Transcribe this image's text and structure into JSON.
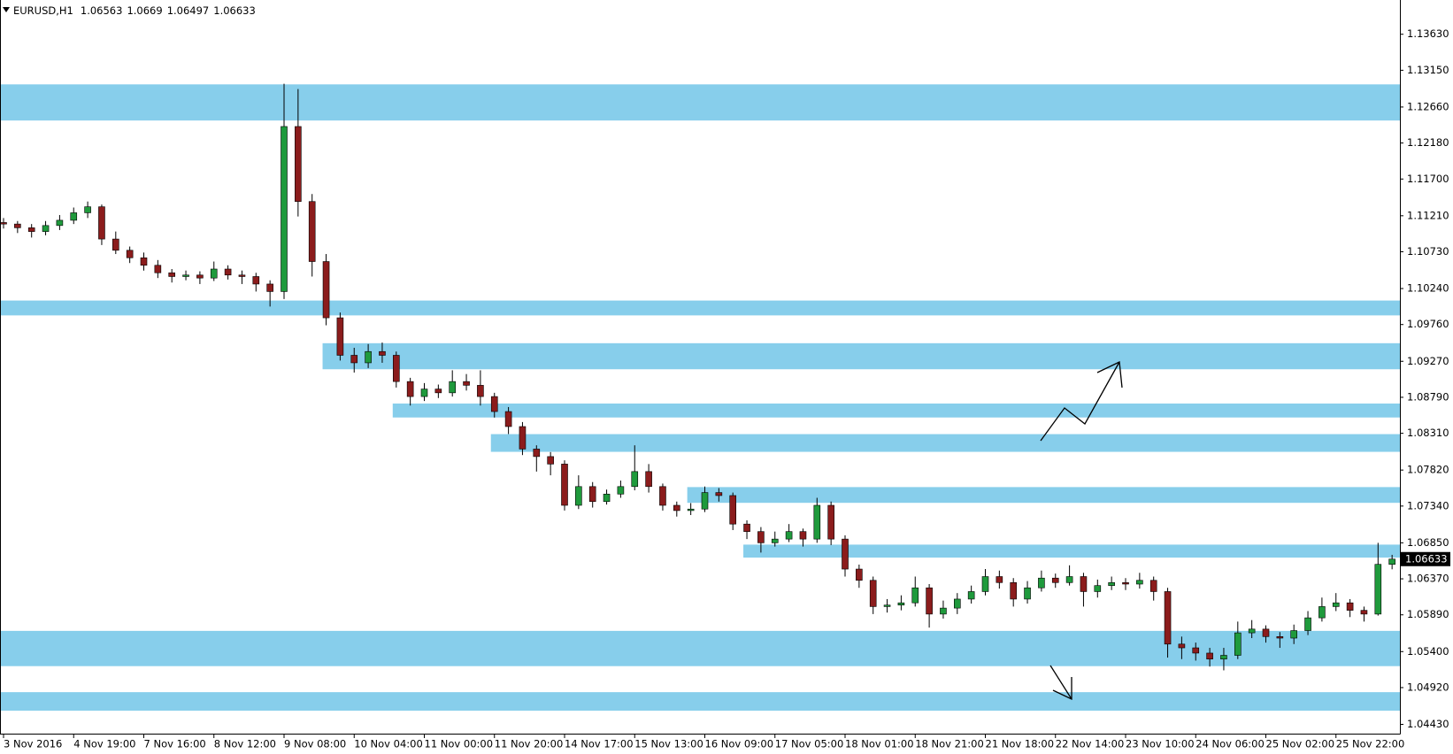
{
  "chart_data": {
    "type": "candlestick",
    "title": "EURUSD,H1",
    "open": [
      1.1112,
      1.111,
      1.1105,
      1.11,
      1.1108,
      1.1115,
      1.1125,
      1.1133,
      1.109,
      1.1075,
      1.1065,
      1.1055,
      1.1045,
      1.104,
      1.1042,
      1.1038,
      1.105,
      1.1042,
      1.104,
      1.103,
      1.102,
      1.124,
      1.114,
      1.106,
      1.0985,
      1.0935,
      1.0925,
      1.094,
      1.0935,
      1.09,
      1.088,
      1.089,
      1.0885,
      1.09,
      1.0895,
      1.088,
      1.086,
      1.084,
      1.081,
      1.08,
      1.079,
      1.0735,
      1.076,
      1.074,
      1.075,
      1.076,
      1.078,
      1.076,
      1.0735,
      1.0728,
      1.073,
      1.0752,
      1.0748,
      1.071,
      1.07,
      1.0685,
      1.069,
      1.07,
      1.069,
      1.0735,
      1.069,
      1.065,
      1.0635,
      1.06,
      1.0602,
      1.0605,
      1.0625,
      1.059,
      1.0598,
      1.061,
      1.062,
      1.064,
      1.0632,
      1.061,
      1.0625,
      1.0638,
      1.0632,
      1.064,
      1.062,
      1.0628,
      1.0632,
      1.063,
      1.0635,
      1.062,
      1.055,
      1.0545,
      1.0538,
      1.053,
      1.0535,
      1.0565,
      1.057,
      1.056,
      1.0558,
      1.0568,
      1.0585,
      1.06,
      1.0605,
      1.0595,
      1.059,
      1.06563
    ],
    "high": [
      1.1118,
      1.1114,
      1.111,
      1.1114,
      1.1122,
      1.1132,
      1.114,
      1.1136,
      1.11,
      1.108,
      1.1072,
      1.1062,
      1.105,
      1.1048,
      1.1047,
      1.106,
      1.1055,
      1.1048,
      1.1045,
      1.1035,
      1.1297,
      1.129,
      1.115,
      1.107,
      1.0992,
      1.0945,
      1.095,
      1.0952,
      1.094,
      1.0905,
      1.0898,
      1.0896,
      1.0915,
      1.091,
      1.0915,
      1.0885,
      1.0866,
      1.0846,
      1.0815,
      1.0806,
      1.0795,
      1.0775,
      1.0766,
      1.0756,
      1.0768,
      1.0815,
      1.079,
      1.0764,
      1.074,
      1.0738,
      1.076,
      1.0758,
      1.0752,
      1.0715,
      1.0706,
      1.07,
      1.071,
      1.0704,
      1.0745,
      1.074,
      1.0695,
      1.0656,
      1.064,
      1.061,
      1.0615,
      1.064,
      1.063,
      1.0608,
      1.0618,
      1.0628,
      1.065,
      1.0648,
      1.0638,
      1.0634,
      1.0648,
      1.0644,
      1.0655,
      1.0645,
      1.0636,
      1.064,
      1.0638,
      1.0645,
      1.064,
      1.0625,
      1.056,
      1.0552,
      1.0545,
      1.0545,
      1.058,
      1.0582,
      1.0575,
      1.0566,
      1.0576,
      1.0594,
      1.0612,
      1.0618,
      1.061,
      1.06,
      1.0685,
      1.0669
    ],
    "low": [
      1.1104,
      1.1098,
      1.1092,
      1.1095,
      1.1102,
      1.111,
      1.1118,
      1.1082,
      1.107,
      1.1058,
      1.1048,
      1.1038,
      1.1032,
      1.1035,
      1.103,
      1.1034,
      1.1036,
      1.103,
      1.102,
      1.1,
      1.101,
      1.112,
      1.104,
      1.0975,
      1.0928,
      1.0912,
      1.0918,
      1.0925,
      1.0892,
      1.0868,
      1.0874,
      1.0878,
      1.088,
      1.0888,
      1.0868,
      1.0852,
      1.083,
      1.0802,
      1.078,
      1.0775,
      1.0728,
      1.073,
      1.0732,
      1.0736,
      1.0745,
      1.0755,
      1.0752,
      1.0728,
      1.072,
      1.0722,
      1.0726,
      1.074,
      1.0702,
      1.069,
      1.0672,
      1.068,
      1.0686,
      1.068,
      1.0685,
      1.0682,
      1.064,
      1.0625,
      1.059,
      1.0592,
      1.0595,
      1.06,
      1.0572,
      1.0584,
      1.059,
      1.0604,
      1.0615,
      1.0624,
      1.06,
      1.0604,
      1.062,
      1.0625,
      1.0628,
      1.06,
      1.0612,
      1.0622,
      1.0622,
      1.0624,
      1.0608,
      1.0532,
      1.053,
      1.0528,
      1.052,
      1.0515,
      1.053,
      1.0558,
      1.0552,
      1.0545,
      1.055,
      1.0562,
      1.058,
      1.0594,
      1.0586,
      1.058,
      1.0588,
      1.06497
    ],
    "close": [
      1.111,
      1.1105,
      1.11,
      1.1108,
      1.1115,
      1.1125,
      1.1133,
      1.109,
      1.1075,
      1.1065,
      1.1055,
      1.1045,
      1.104,
      1.1042,
      1.1038,
      1.105,
      1.1042,
      1.104,
      1.103,
      1.102,
      1.124,
      1.114,
      1.106,
      1.0985,
      1.0935,
      1.0925,
      1.094,
      1.0935,
      1.09,
      1.088,
      1.089,
      1.0885,
      1.09,
      1.0895,
      1.088,
      1.086,
      1.084,
      1.081,
      1.08,
      1.079,
      1.0735,
      1.076,
      1.074,
      1.075,
      1.076,
      1.078,
      1.076,
      1.0735,
      1.0728,
      1.073,
      1.0752,
      1.0748,
      1.071,
      1.07,
      1.0685,
      1.069,
      1.07,
      1.069,
      1.0735,
      1.069,
      1.065,
      1.0635,
      1.06,
      1.0602,
      1.0605,
      1.0625,
      1.059,
      1.0598,
      1.061,
      1.062,
      1.064,
      1.0632,
      1.061,
      1.0625,
      1.0638,
      1.0632,
      1.064,
      1.062,
      1.0628,
      1.0632,
      1.063,
      1.0635,
      1.062,
      1.055,
      1.0545,
      1.0538,
      1.053,
      1.0535,
      1.0565,
      1.057,
      1.056,
      1.0558,
      1.0568,
      1.0585,
      1.06,
      1.0605,
      1.0595,
      1.059,
      1.06563,
      1.06633
    ],
    "up_color": "#1f9a3c",
    "down_color": "#8b1c1c",
    "zone_color": "#87ceeb",
    "zones": [
      {
        "from": 1.12962,
        "to": 1.1248,
        "start": 0
      },
      {
        "from": 1.1008,
        "to": 1.09882,
        "start": 0
      },
      {
        "from": 1.09511,
        "to": 1.09164,
        "start": 23
      },
      {
        "from": 1.08707,
        "to": 1.08521,
        "start": 28
      },
      {
        "from": 1.08299,
        "to": 1.08063,
        "start": 35
      },
      {
        "from": 1.07593,
        "to": 1.07383,
        "start": 49
      },
      {
        "from": 1.06826,
        "to": 1.06653,
        "start": 53
      },
      {
        "from": 1.05676,
        "to": 1.05206,
        "start": 0
      },
      {
        "from": 1.04859,
        "to": 1.04612,
        "start": 0
      }
    ],
    "ylim": [
      1.04306,
      1.14063
    ],
    "yticks": [
      {
        "value": 1.1363,
        "label": "1.13630"
      },
      {
        "value": 1.1315,
        "label": "1.13150"
      },
      {
        "value": 1.1266,
        "label": "1.12660"
      },
      {
        "value": 1.1218,
        "label": "1.12180"
      },
      {
        "value": 1.117,
        "label": "1.11700"
      },
      {
        "value": 1.1121,
        "label": "1.11210"
      },
      {
        "value": 1.1073,
        "label": "1.10730"
      },
      {
        "value": 1.1024,
        "label": "1.10240"
      },
      {
        "value": 1.0976,
        "label": "1.09760"
      },
      {
        "value": 1.0927,
        "label": "1.09270"
      },
      {
        "value": 1.0879,
        "label": "1.08790"
      },
      {
        "value": 1.0831,
        "label": "1.08310"
      },
      {
        "value": 1.0782,
        "label": "1.07820"
      },
      {
        "value": 1.0734,
        "label": "1.07340"
      },
      {
        "value": 1.0685,
        "label": "1.06850"
      },
      {
        "value": 1.0637,
        "label": "1.06370"
      },
      {
        "value": 1.0589,
        "label": "1.05890"
      },
      {
        "value": 1.054,
        "label": "1.05400"
      },
      {
        "value": 1.0492,
        "label": "1.04920"
      },
      {
        "value": 1.0443,
        "label": "1.04430"
      }
    ],
    "xticks": [
      {
        "value": 0,
        "label": "3 Nov 2016"
      },
      {
        "value": 5,
        "label": "4 Nov 19:00"
      },
      {
        "value": 10,
        "label": "7 Nov 16:00"
      },
      {
        "value": 15,
        "label": "8 Nov 12:00"
      },
      {
        "value": 20,
        "label": "9 Nov 08:00"
      },
      {
        "value": 25,
        "label": "10 Nov 04:00"
      },
      {
        "value": 30,
        "label": "11 Nov 00:00"
      },
      {
        "value": 35,
        "label": "11 Nov 20:00"
      },
      {
        "value": 40,
        "label": "14 Nov 17:00"
      },
      {
        "value": 45,
        "label": "15 Nov 13:00"
      },
      {
        "value": 50,
        "label": "16 Nov 09:00"
      },
      {
        "value": 55,
        "label": "17 Nov 05:00"
      },
      {
        "value": 60,
        "label": "18 Nov 01:00"
      },
      {
        "value": 65,
        "label": "18 Nov 21:00"
      },
      {
        "value": 70,
        "label": "21 Nov 18:00"
      },
      {
        "value": 75,
        "label": "22 Nov 14:00"
      },
      {
        "value": 80,
        "label": "23 Nov 10:00"
      },
      {
        "value": 85,
        "label": "24 Nov 06:00"
      },
      {
        "value": 90,
        "label": "25 Nov 02:00"
      },
      {
        "value": 95,
        "label": "25 Nov 22:00"
      }
    ]
  }
}
